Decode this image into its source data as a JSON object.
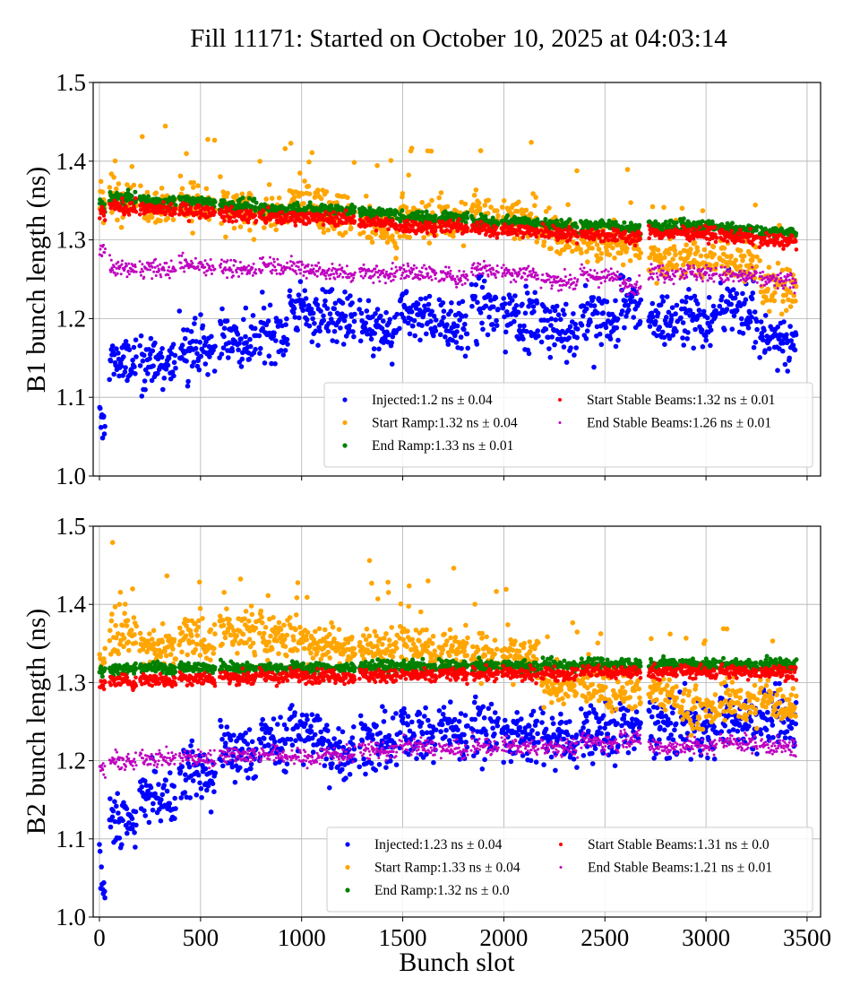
{
  "chart_data": {
    "title": "Fill 11171: Started on October 10, 2025 at 04:03:14",
    "xlabel": "Bunch slot",
    "type": "scatter",
    "xlim": [
      -20,
      3560
    ],
    "ylim": [
      1.0,
      1.5
    ],
    "x_ticks": [
      0,
      500,
      1000,
      1500,
      2000,
      2500,
      3000,
      3500
    ],
    "x_tick_labels": [
      "0",
      "500",
      "1000",
      "1500",
      "2000",
      "2500",
      "3000",
      "3500"
    ],
    "y_ticks": [
      1.0,
      1.1,
      1.2,
      1.3,
      1.4,
      1.5
    ],
    "y_tick_labels": [
      "1.0",
      "1.1",
      "1.2",
      "1.3",
      "1.4",
      "1.5"
    ],
    "grid": true,
    "legend_placement": "lower-right",
    "series_colors": {
      "injected": "#0000ff",
      "start_ramp": "#ffa500",
      "end_ramp": "#008000",
      "start_stable": "#ff0000",
      "end_stable": "#bf00bf"
    },
    "bunch_trains": [
      [
        0,
        27
      ],
      [
        49,
        182
      ],
      [
        199,
        377
      ],
      [
        394,
        572
      ],
      [
        594,
        775
      ],
      [
        789,
        930
      ],
      [
        939,
        1090
      ],
      [
        1094,
        1263
      ],
      [
        1285,
        1471
      ],
      [
        1484,
        1666
      ],
      [
        1679,
        1821
      ],
      [
        1839,
        1972
      ],
      [
        1989,
        2171
      ],
      [
        2184,
        2366
      ],
      [
        2379,
        2565
      ],
      [
        2574,
        2676
      ],
      [
        2716,
        2858
      ],
      [
        2871,
        3053
      ],
      [
        3066,
        3252
      ],
      [
        3265,
        3447
      ]
    ],
    "panels": [
      {
        "ylabel": "B1 bunch length (ns)",
        "legend": [
          {
            "key": "injected",
            "label": "Injected:1.2 ns ± 0.04"
          },
          {
            "key": "start_ramp",
            "label": "Start Ramp:1.32 ns ± 0.04"
          },
          {
            "key": "end_ramp",
            "label": "End Ramp:1.33 ns ± 0.01"
          },
          {
            "key": "start_stable",
            "label": "Start Stable Beams:1.32 ns ± 0.01"
          },
          {
            "key": "end_stable",
            "label": "End Stable Beams:1.26 ns ± 0.01"
          }
        ],
        "train_means": {
          "injected": [
            1.07,
            1.15,
            1.15,
            1.17,
            1.18,
            1.19,
            1.215,
            1.21,
            1.19,
            1.21,
            1.2,
            1.22,
            1.21,
            1.195,
            1.205,
            1.225,
            1.205,
            1.21,
            1.22,
            1.18
          ],
          "start_ramp": [
            1.35,
            1.36,
            1.35,
            1.35,
            1.34,
            1.34,
            1.35,
            1.34,
            1.32,
            1.33,
            1.33,
            1.34,
            1.33,
            1.31,
            1.3,
            1.3,
            1.28,
            1.28,
            1.28,
            1.24
          ],
          "end_ramp": [
            1.345,
            1.355,
            1.35,
            1.35,
            1.345,
            1.34,
            1.34,
            1.34,
            1.335,
            1.33,
            1.33,
            1.325,
            1.325,
            1.32,
            1.32,
            1.315,
            1.32,
            1.32,
            1.315,
            1.31
          ],
          "start_stable": [
            1.335,
            1.343,
            1.34,
            1.338,
            1.333,
            1.33,
            1.33,
            1.328,
            1.322,
            1.318,
            1.318,
            1.315,
            1.313,
            1.31,
            1.308,
            1.305,
            1.31,
            1.31,
            1.305,
            1.3
          ],
          "end_stable": [
            1.29,
            1.265,
            1.265,
            1.27,
            1.265,
            1.27,
            1.265,
            1.26,
            1.26,
            1.26,
            1.255,
            1.265,
            1.26,
            1.25,
            1.255,
            1.245,
            1.26,
            1.26,
            1.255,
            1.25
          ]
        }
      },
      {
        "ylabel": "B2 bunch length (ns)",
        "legend": [
          {
            "key": "injected",
            "label": "Injected:1.23 ns ± 0.04"
          },
          {
            "key": "start_ramp",
            "label": "Start Ramp:1.33 ns ± 0.04"
          },
          {
            "key": "end_ramp",
            "label": "End Ramp:1.32 ns ± 0.0"
          },
          {
            "key": "start_stable",
            "label": "Start Stable Beams:1.31 ns ± 0.0"
          },
          {
            "key": "end_stable",
            "label": "End Stable Beams:1.21 ns ± 0.01"
          }
        ],
        "train_means": {
          "injected": [
            1.06,
            1.13,
            1.16,
            1.19,
            1.22,
            1.23,
            1.245,
            1.22,
            1.23,
            1.24,
            1.245,
            1.25,
            1.24,
            1.235,
            1.24,
            1.25,
            1.25,
            1.25,
            1.26,
            1.26
          ],
          "start_ramp": [
            1.33,
            1.37,
            1.35,
            1.36,
            1.37,
            1.365,
            1.36,
            1.35,
            1.35,
            1.355,
            1.35,
            1.34,
            1.335,
            1.3,
            1.3,
            1.3,
            1.29,
            1.27,
            1.28,
            1.28
          ],
          "end_ramp": [
            1.315,
            1.318,
            1.32,
            1.32,
            1.32,
            1.32,
            1.32,
            1.32,
            1.322,
            1.322,
            1.322,
            1.322,
            1.322,
            1.324,
            1.325,
            1.325,
            1.325,
            1.325,
            1.325,
            1.325
          ],
          "start_stable": [
            1.298,
            1.303,
            1.305,
            1.307,
            1.308,
            1.308,
            1.31,
            1.31,
            1.31,
            1.31,
            1.312,
            1.312,
            1.312,
            1.313,
            1.315,
            1.315,
            1.315,
            1.315,
            1.315,
            1.315
          ],
          "end_stable": [
            1.19,
            1.2,
            1.205,
            1.205,
            1.21,
            1.21,
            1.205,
            1.21,
            1.215,
            1.22,
            1.215,
            1.22,
            1.22,
            1.22,
            1.225,
            1.23,
            1.22,
            1.22,
            1.225,
            1.22
          ]
        }
      }
    ]
  }
}
